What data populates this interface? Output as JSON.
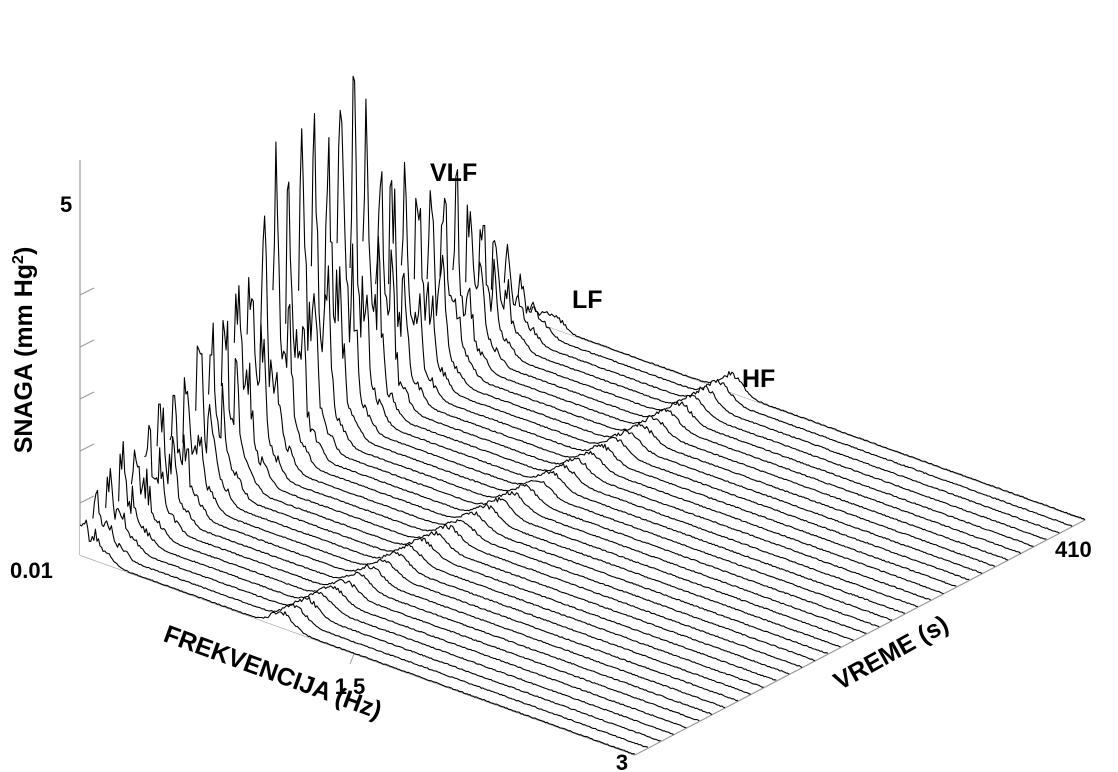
{
  "chart_data": {
    "type": "line",
    "variant": "waterfall-3d",
    "title": "",
    "xlabel": "FREKVENCIJA (Hz)",
    "ylabel": "VREME (s)",
    "zlabel": "SNAGA (mm Hg²)",
    "zlabel_base": "SNAGA (mm Hg",
    "zlabel_sup": "2",
    "zlabel_tail": ")",
    "x_ticks": [
      "0.01",
      "1.5",
      "3"
    ],
    "y_ticks": [
      "410"
    ],
    "z_ticks": [
      "5"
    ],
    "xlim": [
      0.01,
      3
    ],
    "ylim": [
      3,
      410
    ],
    "zlim": [
      0,
      7
    ],
    "num_traces": 36,
    "bands": [
      {
        "label": "VLF",
        "frequency_hz": 0.03
      },
      {
        "label": "LF",
        "frequency_hz": 0.1
      },
      {
        "label": "HF",
        "frequency_hz": 1.1
      }
    ],
    "peak_power_profile": [
      {
        "time_s": 3,
        "vlf": 1.1,
        "lf": 0.25,
        "hf": 0.35
      },
      {
        "time_s": 60,
        "vlf": 2.5,
        "lf": 0.35,
        "hf": 0.3
      },
      {
        "time_s": 120,
        "vlf": 4.0,
        "lf": 0.5,
        "hf": 0.3
      },
      {
        "time_s": 180,
        "vlf": 6.2,
        "lf": 0.6,
        "hf": 0.3
      },
      {
        "time_s": 240,
        "vlf": 7.0,
        "lf": 0.55,
        "hf": 0.3
      },
      {
        "time_s": 300,
        "vlf": 4.5,
        "lf": 0.45,
        "hf": 0.3
      },
      {
        "time_s": 360,
        "vlf": 3.5,
        "lf": 0.4,
        "hf": 0.35
      },
      {
        "time_s": 410,
        "vlf": 0.4,
        "lf": 0.3,
        "hf": 0.4
      }
    ],
    "grid": false,
    "legend": "none",
    "line_color": "#000000"
  }
}
